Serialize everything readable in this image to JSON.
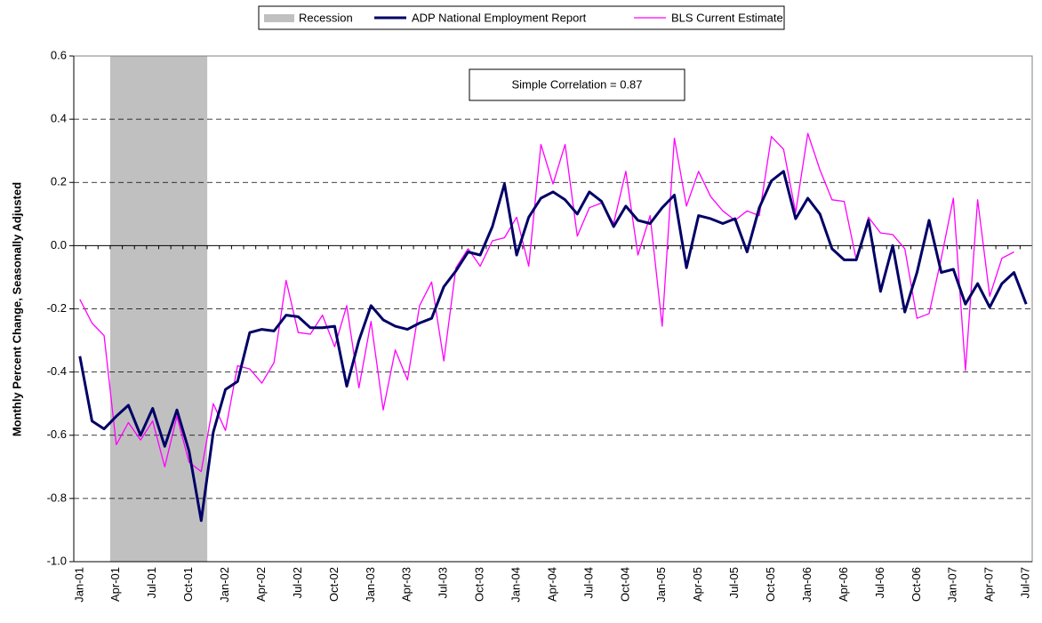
{
  "chart_data": {
    "type": "line",
    "y_label": "Monthly Percent Change, Seasonally Adjusted",
    "annotation": "Simple Correlation = 0.87",
    "categories": [
      "Jan-01",
      null,
      null,
      "Apr-01",
      null,
      null,
      "Jul-01",
      null,
      null,
      "Oct-01",
      null,
      null,
      "Jan-02",
      null,
      null,
      "Apr-02",
      null,
      null,
      "Jul-02",
      null,
      null,
      "Oct-02",
      null,
      null,
      "Jan-03",
      null,
      null,
      "Apr-03",
      null,
      null,
      "Jul-03",
      null,
      null,
      "Oct-03",
      null,
      null,
      "Jan-04",
      null,
      null,
      "Apr-04",
      null,
      null,
      "Jul-04",
      null,
      null,
      "Oct-04",
      null,
      null,
      "Jan-05",
      null,
      null,
      "Apr-05",
      null,
      null,
      "Jul-05",
      null,
      null,
      "Oct-05",
      null,
      null,
      "Jan-06",
      null,
      null,
      "Apr-06",
      null,
      null,
      "Jul-06",
      null,
      null,
      "Oct-06",
      null,
      null,
      "Jan-07",
      null,
      null,
      "Apr-07",
      null,
      null,
      "Jul-07"
    ],
    "recession": {
      "name": "Recession",
      "color": "#c0c0c0",
      "start": 3,
      "end": 10
    },
    "series": [
      {
        "name": "ADP National Employment Report",
        "color": "#000066",
        "width": 3,
        "values": [
          -0.35,
          -0.555,
          -0.58,
          -0.54,
          -0.505,
          -0.6,
          -0.515,
          -0.635,
          -0.52,
          -0.65,
          -0.87,
          -0.59,
          -0.455,
          -0.43,
          -0.275,
          -0.265,
          -0.27,
          -0.22,
          -0.225,
          -0.26,
          -0.26,
          -0.255,
          -0.445,
          -0.3,
          -0.19,
          -0.235,
          -0.255,
          -0.265,
          -0.245,
          -0.23,
          -0.13,
          -0.08,
          -0.02,
          -0.03,
          0.06,
          0.195,
          -0.03,
          0.09,
          0.15,
          0.17,
          0.145,
          0.1,
          0.17,
          0.14,
          0.06,
          0.125,
          0.08,
          0.07,
          0.12,
          0.16,
          -0.07,
          0.095,
          0.085,
          0.07,
          0.085,
          -0.02,
          0.12,
          0.205,
          0.235,
          0.085,
          0.15,
          0.1,
          -0.01,
          -0.045,
          -0.045,
          0.08,
          -0.145,
          0.0,
          -0.21,
          -0.085,
          0.08,
          -0.085,
          -0.075,
          -0.185,
          -0.12,
          -0.195,
          -0.12,
          -0.085,
          -0.185
        ]
      },
      {
        "name": "BLS Current Estimate",
        "color": "#ff00ff",
        "width": 1.3,
        "values": [
          -0.17,
          -0.245,
          -0.285,
          -0.63,
          -0.56,
          -0.615,
          -0.555,
          -0.7,
          -0.54,
          -0.685,
          -0.715,
          -0.5,
          -0.585,
          -0.38,
          -0.39,
          -0.435,
          -0.37,
          -0.11,
          -0.275,
          -0.28,
          -0.22,
          -0.32,
          -0.19,
          -0.45,
          -0.24,
          -0.52,
          -0.33,
          -0.425,
          -0.19,
          -0.115,
          -0.365,
          -0.07,
          -0.01,
          -0.065,
          0.015,
          0.025,
          0.09,
          -0.065,
          0.32,
          0.195,
          0.32,
          0.03,
          0.12,
          0.135,
          0.07,
          0.235,
          -0.03,
          0.095,
          -0.255,
          0.34,
          0.125,
          0.235,
          0.155,
          0.11,
          0.08,
          0.11,
          0.095,
          0.345,
          0.305,
          0.105,
          0.355,
          0.24,
          0.145,
          0.14,
          -0.045,
          0.09,
          0.04,
          0.035,
          -0.01,
          -0.23,
          -0.215,
          -0.04,
          0.15,
          -0.395,
          0.145,
          -0.16,
          -0.04,
          -0.02,
          null
        ]
      }
    ],
    "ylim": [
      -1.0,
      0.6
    ],
    "yticks": [
      {
        "value": -1.0,
        "label": "-1.0"
      },
      -0.8,
      -0.6,
      -0.4,
      -0.2,
      {
        "value": 0,
        "label": "0.0"
      },
      0.2,
      0.4,
      0.6
    ],
    "grid": true
  }
}
